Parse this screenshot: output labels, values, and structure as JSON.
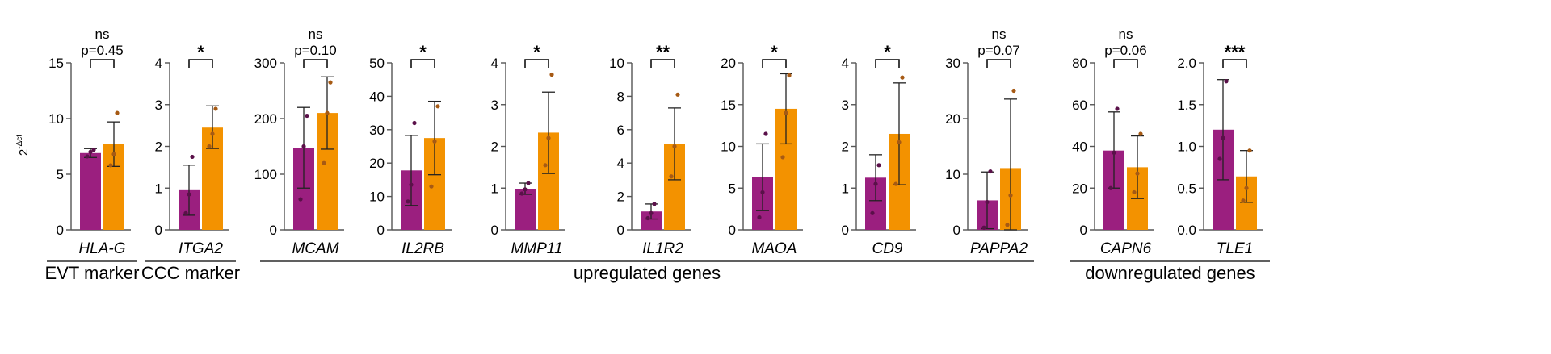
{
  "chart_data": {
    "type": "bar",
    "ylabel": "2",
    "ylabel_superscript": "-Δct",
    "colors": {
      "group1": "#9b1f7f",
      "group2": "#f39200",
      "dot1": "#5a1049",
      "dot2": "#a65a14"
    },
    "groups": [
      {
        "label": "EVT marker",
        "panels": [
          0
        ]
      },
      {
        "label": "CCC marker",
        "panels": [
          1
        ]
      },
      {
        "label": "upregulated genes",
        "panels": [
          2,
          3,
          4,
          5,
          6,
          7,
          8
        ]
      },
      {
        "label": "downregulated genes",
        "panels": [
          9,
          10
        ]
      }
    ],
    "panels": [
      {
        "gene": "HLA-G",
        "ylim": [
          0,
          15
        ],
        "ticks": [
          0,
          5,
          10,
          15
        ],
        "tick_labels": [
          "0",
          "5",
          "10",
          "15"
        ],
        "bars": [
          {
            "mean": 6.9,
            "sd_low": 6.5,
            "sd_high": 7.3,
            "points": [
              6.6,
              7.0,
              7.2
            ]
          },
          {
            "mean": 7.7,
            "sd_low": 5.7,
            "sd_high": 9.7,
            "points": [
              5.8,
              6.8,
              10.5
            ]
          }
        ],
        "sig": "ns",
        "p": "p=0.45"
      },
      {
        "gene": "ITGA2",
        "ylim": [
          0,
          4
        ],
        "ticks": [
          0,
          1,
          2,
          3,
          4
        ],
        "tick_labels": [
          "0",
          "1",
          "2",
          "3",
          "4"
        ],
        "bars": [
          {
            "mean": 0.95,
            "sd_low": 0.35,
            "sd_high": 1.55,
            "points": [
              0.4,
              0.85,
              1.75
            ]
          },
          {
            "mean": 2.45,
            "sd_low": 1.95,
            "sd_high": 2.97,
            "points": [
              2.0,
              2.3,
              2.9
            ]
          }
        ],
        "sig": "*",
        "p": ""
      },
      {
        "gene": "MCAM",
        "ylim": [
          0,
          300
        ],
        "ticks": [
          0,
          100,
          200,
          300
        ],
        "tick_labels": [
          "0",
          "100",
          "200",
          "300"
        ],
        "bars": [
          {
            "mean": 147,
            "sd_low": 75,
            "sd_high": 220,
            "points": [
              55,
              150,
              205
            ]
          },
          {
            "mean": 210,
            "sd_low": 145,
            "sd_high": 275,
            "points": [
              120,
              210,
              265
            ]
          }
        ],
        "sig": "ns",
        "p": "p=0.10"
      },
      {
        "gene": "IL2RB",
        "ylim": [
          0,
          50
        ],
        "ticks": [
          0,
          10,
          20,
          30,
          40,
          50
        ],
        "tick_labels": [
          "0",
          "10",
          "20",
          "30",
          "40",
          "50"
        ],
        "bars": [
          {
            "mean": 17.8,
            "sd_low": 7.3,
            "sd_high": 28.3,
            "points": [
              8.5,
              13.5,
              32
            ]
          },
          {
            "mean": 27.5,
            "sd_low": 16.5,
            "sd_high": 38.5,
            "points": [
              13,
              26.5,
              37
            ]
          }
        ],
        "sig": "*",
        "p": ""
      },
      {
        "gene": "MMP11",
        "ylim": [
          0,
          4
        ],
        "ticks": [
          0,
          1,
          2,
          3,
          4
        ],
        "tick_labels": [
          "0",
          "1",
          "2",
          "3",
          "4"
        ],
        "bars": [
          {
            "mean": 0.98,
            "sd_low": 0.85,
            "sd_high": 1.12,
            "points": [
              0.87,
              0.97,
              1.12
            ]
          },
          {
            "mean": 2.33,
            "sd_low": 1.35,
            "sd_high": 3.3,
            "points": [
              1.55,
              2.2,
              3.72
            ]
          }
        ],
        "sig": "*",
        "p": ""
      },
      {
        "gene": "IL1R2",
        "ylim": [
          0,
          10
        ],
        "ticks": [
          0,
          2,
          4,
          6,
          8,
          10
        ],
        "tick_labels": [
          "0",
          "2",
          "4",
          "6",
          "8",
          "10"
        ],
        "bars": [
          {
            "mean": 1.1,
            "sd_low": 0.65,
            "sd_high": 1.55,
            "points": [
              0.7,
              1.0,
              1.55
            ]
          },
          {
            "mean": 5.15,
            "sd_low": 3.0,
            "sd_high": 7.3,
            "points": [
              3.2,
              5.0,
              8.1
            ]
          }
        ],
        "sig": "**",
        "p": ""
      },
      {
        "gene": "MAOA",
        "ylim": [
          0,
          20
        ],
        "ticks": [
          0,
          5,
          10,
          15,
          20
        ],
        "tick_labels": [
          "0",
          "5",
          "10",
          "15",
          "20"
        ],
        "bars": [
          {
            "mean": 6.3,
            "sd_low": 2.3,
            "sd_high": 10.3,
            "points": [
              1.5,
              4.5,
              11.5
            ]
          },
          {
            "mean": 14.5,
            "sd_low": 10.3,
            "sd_high": 18.7,
            "points": [
              8.7,
              14.0,
              18.5
            ]
          }
        ],
        "sig": "*",
        "p": ""
      },
      {
        "gene": "CD9",
        "ylim": [
          0,
          4
        ],
        "ticks": [
          0,
          1,
          2,
          3,
          4
        ],
        "tick_labels": [
          "0",
          "1",
          "2",
          "3",
          "4"
        ],
        "bars": [
          {
            "mean": 1.25,
            "sd_low": 0.7,
            "sd_high": 1.8,
            "points": [
              0.4,
              1.1,
              1.55
            ]
          },
          {
            "mean": 2.3,
            "sd_low": 1.08,
            "sd_high": 3.52,
            "points": [
              1.1,
              2.1,
              3.65
            ]
          }
        ],
        "sig": "*",
        "p": ""
      },
      {
        "gene": "PAPPA2",
        "ylim": [
          0,
          30
        ],
        "ticks": [
          0,
          10,
          20,
          30
        ],
        "tick_labels": [
          "0",
          "10",
          "20",
          "30"
        ],
        "bars": [
          {
            "mean": 5.3,
            "sd_low": 0.2,
            "sd_high": 10.4,
            "points": [
              0.4,
              5.0,
              10.5
            ]
          },
          {
            "mean": 11.1,
            "sd_low": 0,
            "sd_high": 23.5,
            "points": [
              0.9,
              6.2,
              25.0
            ]
          }
        ],
        "sig": "ns",
        "p": "p=0.07"
      },
      {
        "gene": "CAPN6",
        "ylim": [
          0,
          80
        ],
        "ticks": [
          0,
          20,
          40,
          60,
          80
        ],
        "tick_labels": [
          "0",
          "20",
          "40",
          "60",
          "80"
        ],
        "bars": [
          {
            "mean": 38,
            "sd_low": 20,
            "sd_high": 56.5,
            "points": [
              20,
              37,
              58
            ]
          },
          {
            "mean": 30,
            "sd_low": 15,
            "sd_high": 45,
            "points": [
              18,
              27,
              46
            ]
          }
        ],
        "sig": "ns",
        "p": "p=0.06"
      },
      {
        "gene": "TLE1",
        "ylim": [
          0,
          2.0
        ],
        "ticks": [
          0,
          0.5,
          1.0,
          1.5,
          2.0
        ],
        "tick_labels": [
          "0.0",
          "0.5",
          "1.0",
          "1.5",
          "2.0"
        ],
        "bars": [
          {
            "mean": 1.2,
            "sd_low": 0.6,
            "sd_high": 1.8,
            "points": [
              0.85,
              1.1,
              1.78
            ]
          },
          {
            "mean": 0.64,
            "sd_low": 0.33,
            "sd_high": 0.95,
            "points": [
              0.35,
              0.5,
              0.95
            ]
          }
        ],
        "sig": "***",
        "p": ""
      }
    ]
  }
}
